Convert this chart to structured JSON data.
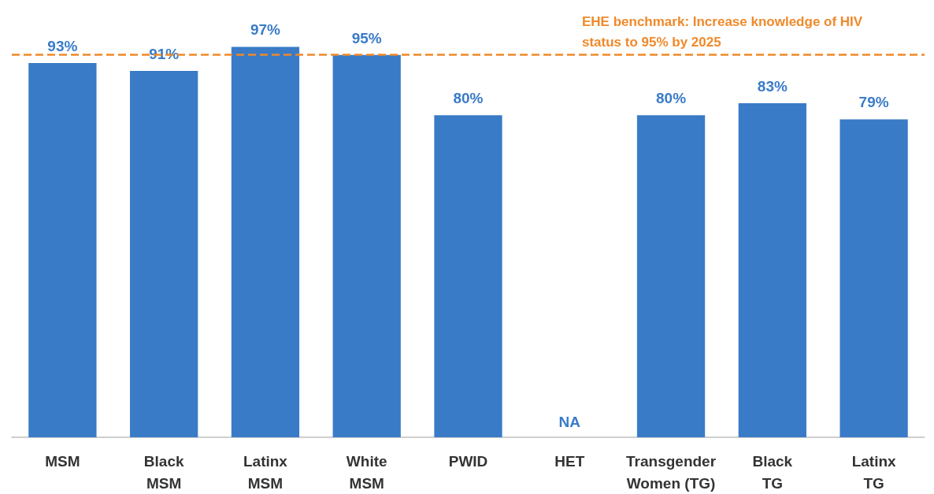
{
  "chart_data": {
    "type": "bar",
    "categories": [
      "MSM",
      "Black\nMSM",
      "Latinx\nMSM",
      "White\nMSM",
      "PWID",
      "HET",
      "Transgender\nWomen (TG)",
      "Black\nTG",
      "Latinx\nTG"
    ],
    "values": [
      93,
      91,
      97,
      95,
      80,
      null,
      80,
      83,
      79
    ],
    "value_labels": [
      "93%",
      "91%",
      "97%",
      "95%",
      "80%",
      "NA",
      "80%",
      "83%",
      "79%"
    ],
    "color": "#3a7bc8",
    "tick_labels": "x",
    "ref_lines": [
      {
        "axis": "y",
        "value": 95,
        "label": "EHE benchmark: Increase knowledge of HIV status to 95% by 2025",
        "color": "#f0892a",
        "line_style": "dashed"
      }
    ]
  }
}
